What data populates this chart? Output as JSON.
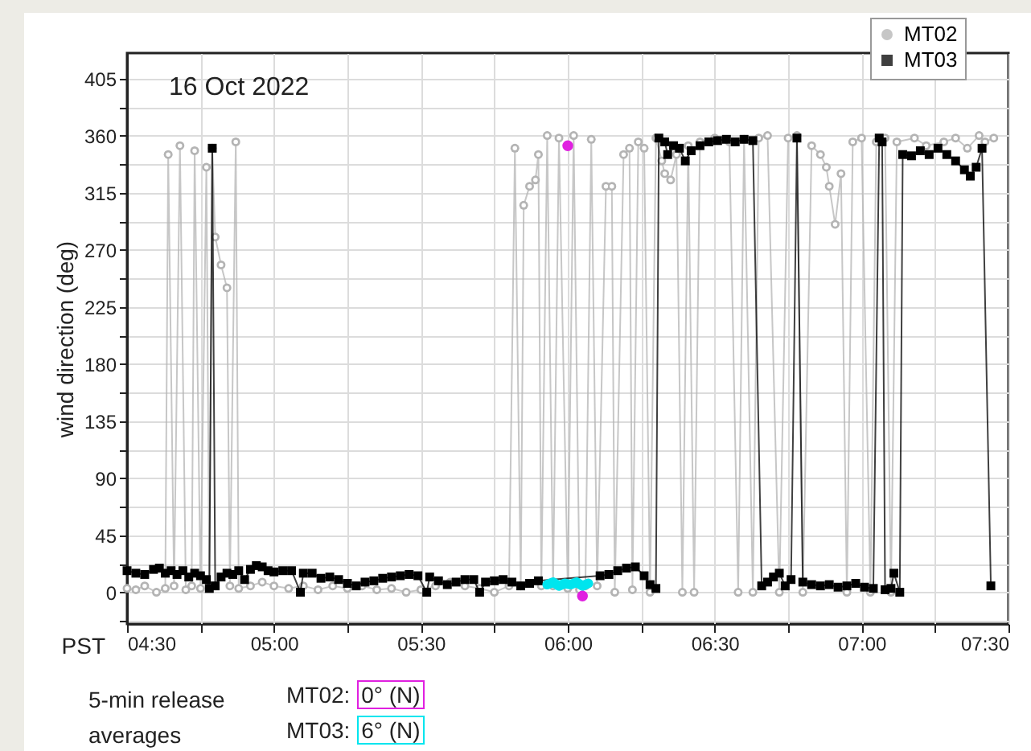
{
  "chart_data": {
    "type": "line",
    "xlabel": "PST",
    "ylabel": "wind direction (deg)",
    "xlim": [
      4.5,
      7.5
    ],
    "ylim": [
      -25,
      425
    ],
    "xticks": [
      {
        "value": 4.5,
        "label": "04:30"
      },
      {
        "value": 4.75,
        "label": null
      },
      {
        "value": 5,
        "label": "05:00"
      },
      {
        "value": 5.25,
        "label": null
      },
      {
        "value": 5.5,
        "label": "05:30"
      },
      {
        "value": 5.75,
        "label": null
      },
      {
        "value": 6,
        "label": "06:00"
      },
      {
        "value": 6.25,
        "label": null
      },
      {
        "value": 6.5,
        "label": "06:30"
      },
      {
        "value": 6.75,
        "label": null
      },
      {
        "value": 7,
        "label": "07:00"
      },
      {
        "value": 7.25,
        "label": null
      },
      {
        "value": 7.5,
        "label": "07:30"
      }
    ],
    "yticks": [
      {
        "value": -22.5,
        "label": null
      },
      0,
      {
        "value": 22.5,
        "label": null
      },
      45,
      {
        "value": 67.5,
        "label": null
      },
      90,
      {
        "value": 112.5,
        "label": null
      },
      135,
      {
        "value": 157.5,
        "label": null
      },
      180,
      {
        "value": 202.5,
        "label": null
      },
      225,
      {
        "value": 247.5,
        "label": null
      },
      270,
      {
        "value": 292.5,
        "label": null
      },
      315,
      {
        "value": 337.5,
        "label": null
      },
      360,
      {
        "value": 382.5,
        "label": null
      },
      405
    ],
    "grid": true,
    "legend": "top right",
    "annotations": [
      "16 Oct 2022",
      "5-min release averages",
      "MT02: 0° (N)",
      "MT03: 6° (N)"
    ],
    "series": [
      {
        "name": "MT02",
        "marker": "circle",
        "color": "#b4b4b4",
        "x": [
          4.5,
          4.53,
          4.56,
          4.6,
          4.63,
          4.64,
          4.66,
          4.68,
          4.7,
          4.72,
          4.73,
          4.75,
          4.77,
          4.78,
          4.79,
          4.8,
          4.82,
          4.84,
          4.85,
          4.87,
          4.88,
          4.92,
          4.96,
          5.0,
          5.05,
          5.1,
          5.15,
          5.2,
          5.25,
          5.3,
          5.35,
          5.4,
          5.45,
          5.5,
          5.55,
          5.6,
          5.65,
          5.7,
          5.75,
          5.8,
          5.82,
          5.84,
          5.85,
          5.87,
          5.89,
          5.9,
          5.91,
          5.93,
          5.95,
          5.97,
          6.0,
          6.02,
          6.04,
          6.06,
          6.08,
          6.1,
          6.13,
          6.15,
          6.16,
          6.19,
          6.21,
          6.22,
          6.24,
          6.26,
          6.28,
          6.3,
          6.32,
          6.33,
          6.35,
          6.37,
          6.39,
          6.41,
          6.43,
          6.45,
          6.5,
          6.55,
          6.58,
          6.6,
          6.63,
          6.65,
          6.68,
          6.72,
          6.75,
          6.78,
          6.8,
          6.83,
          6.86,
          6.88,
          6.89,
          6.91,
          6.93,
          6.95,
          6.97,
          7.0,
          7.03,
          7.05,
          7.08,
          7.1,
          7.12,
          7.18,
          7.22,
          7.28,
          7.32,
          7.36,
          7.4,
          7.42,
          7.45
        ],
        "values": [
          3,
          2,
          5,
          0,
          3,
          345,
          5,
          352,
          2,
          5,
          348,
          3,
          335,
          5,
          350,
          280,
          258,
          240,
          5,
          355,
          3,
          5,
          8,
          5,
          3,
          5,
          2,
          5,
          3,
          5,
          2,
          3,
          0,
          2,
          5,
          8,
          5,
          3,
          0,
          5,
          350,
          5,
          305,
          320,
          325,
          345,
          5,
          360,
          5,
          358,
          3,
          360,
          2,
          5,
          357,
          5,
          320,
          320,
          0,
          345,
          350,
          2,
          355,
          350,
          0,
          358,
          340,
          330,
          325,
          345,
          0,
          352,
          0,
          355,
          358,
          355,
          0,
          357,
          0,
          358,
          360,
          0,
          358,
          360,
          0,
          352,
          345,
          335,
          320,
          290,
          330,
          0,
          355,
          358,
          0,
          355,
          358,
          0,
          355,
          358,
          352,
          355,
          358,
          350,
          360,
          355,
          358
        ]
      },
      {
        "name": "MT03",
        "marker": "square",
        "color": "#000000",
        "x": [
          4.5,
          4.53,
          4.56,
          4.59,
          4.61,
          4.63,
          4.65,
          4.67,
          4.69,
          4.71,
          4.73,
          4.75,
          4.77,
          4.78,
          4.79,
          4.8,
          4.82,
          4.84,
          4.86,
          4.88,
          4.9,
          4.92,
          4.94,
          4.96,
          4.98,
          5.0,
          5.03,
          5.06,
          5.09,
          5.1,
          5.13,
          5.16,
          5.19,
          5.22,
          5.25,
          5.28,
          5.31,
          5.34,
          5.37,
          5.4,
          5.43,
          5.46,
          5.49,
          5.52,
          5.53,
          5.56,
          5.59,
          5.62,
          5.65,
          5.68,
          5.7,
          5.72,
          5.75,
          5.78,
          5.81,
          5.84,
          5.87,
          5.9,
          6.11,
          6.14,
          6.17,
          6.2,
          6.23,
          6.26,
          6.28,
          6.3,
          6.31,
          6.33,
          6.34,
          6.36,
          6.38,
          6.4,
          6.42,
          6.45,
          6.48,
          6.51,
          6.54,
          6.57,
          6.6,
          6.63,
          6.66,
          6.68,
          6.7,
          6.72,
          6.74,
          6.76,
          6.78,
          6.8,
          6.83,
          6.86,
          6.89,
          6.92,
          6.95,
          6.98,
          7.01,
          7.04,
          7.06,
          7.07,
          7.08,
          7.1,
          7.11,
          7.13,
          7.14,
          7.17,
          7.2,
          7.23,
          7.26,
          7.29,
          7.32,
          7.35,
          7.37,
          7.39,
          7.41,
          7.44
        ],
        "values": [
          17,
          15,
          14,
          18,
          19,
          15,
          17,
          14,
          17,
          12,
          15,
          13,
          10,
          3,
          350,
          5,
          12,
          15,
          14,
          17,
          10,
          18,
          21,
          20,
          17,
          16,
          17,
          17,
          0,
          15,
          15,
          11,
          12,
          10,
          7,
          5,
          8,
          9,
          11,
          12,
          13,
          14,
          13,
          0,
          12,
          9,
          6,
          8,
          10,
          10,
          0,
          8,
          9,
          10,
          8,
          5,
          7,
          9,
          13,
          14,
          17,
          19,
          20,
          13,
          6,
          3,
          358,
          355,
          345,
          352,
          350,
          340,
          348,
          352,
          355,
          356,
          357,
          355,
          357,
          356,
          5,
          8,
          12,
          15,
          5,
          10,
          358,
          8,
          6,
          5,
          6,
          4,
          5,
          7,
          4,
          3,
          358,
          355,
          2,
          3,
          15,
          0,
          345,
          344,
          348,
          345,
          350,
          345,
          340,
          333,
          328,
          335,
          350,
          5
        ]
      },
      {
        "type": "line",
        "marker": "none",
        "color": "#00e5ee",
        "x": [
          5.93,
          5.95,
          5.97,
          5.99,
          6.01,
          6.03,
          6.05,
          6.07
        ],
        "values": [
          6,
          8,
          5,
          7,
          6,
          8,
          5,
          7
        ]
      },
      {
        "type": "scatter",
        "marker": "circle",
        "color": "#e020e0",
        "x": [
          6.0,
          6.05
        ],
        "values": [
          352,
          -3
        ]
      }
    ]
  }
}
